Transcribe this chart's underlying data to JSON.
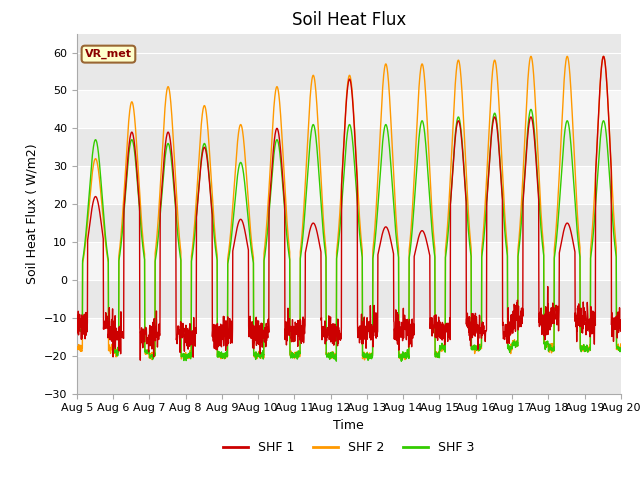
{
  "title": "Soil Heat Flux",
  "xlabel": "Time",
  "ylabel": "Soil Heat Flux ( W/m2)",
  "ylim": [
    -30,
    65
  ],
  "yticks": [
    -30,
    -20,
    -10,
    0,
    10,
    20,
    30,
    40,
    50,
    60
  ],
  "xtick_labels": [
    "Aug 5",
    "Aug 6",
    "Aug 7",
    "Aug 8",
    "Aug 9",
    "Aug 10",
    "Aug 11",
    "Aug 12",
    "Aug 13",
    "Aug 14",
    "Aug 15",
    "Aug 16",
    "Aug 17",
    "Aug 18",
    "Aug 19",
    "Aug 20"
  ],
  "colors": {
    "SHF1": "#cc0000",
    "SHF2": "#ff9900",
    "SHF3": "#33cc00"
  },
  "legend_labels": [
    "SHF 1",
    "SHF 2",
    "SHF 3"
  ],
  "vr_met_label": "VR_met",
  "bg_color": "#ffffff",
  "plot_bg_color": "#e8e8e8",
  "band_color": "#f5f5f5",
  "title_fontsize": 12,
  "axis_label_fontsize": 9,
  "tick_fontsize": 8
}
